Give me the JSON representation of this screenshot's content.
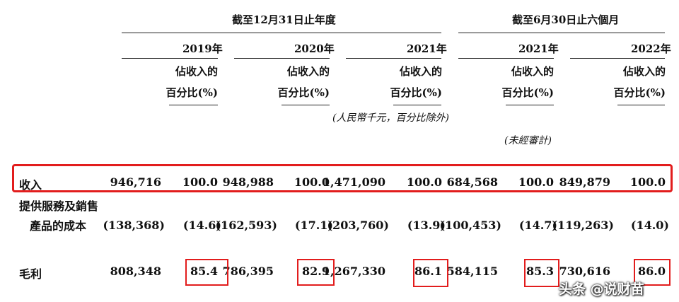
{
  "groups": {
    "annual": "截至12月31日止年度",
    "interim": "截至6月30日止六個月"
  },
  "years": [
    "2019年",
    "2020年",
    "2021年",
    "2021年",
    "2022年"
  ],
  "pct_label": {
    "line1": "佔收入的",
    "line2": "百分比(%)"
  },
  "currency_note": "(人民幣千元，百分比除外)",
  "unaudited_note": "(未經審計)",
  "rows": [
    {
      "label": "收入",
      "cells": [
        "946,716",
        "100.0",
        "948,988",
        "100.0",
        "1,471,090",
        "100.0",
        "684,568",
        "100.0",
        "849,879",
        "100.0"
      ]
    },
    {
      "label_line1": "提供服務及銷售",
      "label_line2": "產品的成本",
      "cells": [
        "(138,368)",
        "(14.6)",
        "(162,593)",
        "(17.1)",
        "(203,760)",
        "(13.9)",
        "(100,453)",
        "(14.7)",
        "(119,263)",
        "(14.0)"
      ]
    },
    {
      "label": "毛利",
      "cells": [
        "808,348",
        "85.4",
        "786,395",
        "82.9",
        "1,267,330",
        "86.1",
        "584,115",
        "85.3",
        "730,616",
        "86.0"
      ]
    }
  ],
  "watermark": "头条 @说财苗",
  "highlight_color": "#e21d1d"
}
